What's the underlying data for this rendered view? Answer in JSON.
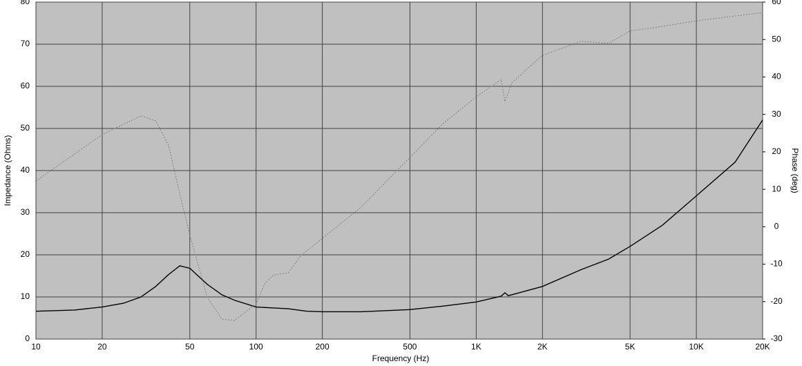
{
  "chart_data": {
    "type": "line",
    "xlabel": "Frequency (Hz)",
    "ylabel": "Impedance (Ohms)",
    "y2label": "Phase (deg)",
    "xscale": "log",
    "grid": true,
    "xlim": [
      10,
      20000
    ],
    "xticks": [
      10,
      20,
      50,
      100,
      200,
      500,
      {
        "value": 1000,
        "label": "1K"
      },
      {
        "value": 2000,
        "label": "2K"
      },
      {
        "value": 5000,
        "label": "5K"
      },
      {
        "value": 10000,
        "label": "10K"
      },
      {
        "value": 20000,
        "label": "20K"
      }
    ],
    "ylim": [
      0,
      80
    ],
    "yticks": [
      0,
      10,
      20,
      30,
      40,
      50,
      60,
      70,
      80
    ],
    "y2lim": [
      -30,
      60
    ],
    "y2ticks": [
      -30,
      -20,
      -10,
      0,
      10,
      20,
      30,
      40,
      50,
      60
    ],
    "series": [
      {
        "name": "Impedance",
        "color": "#000000",
        "x": [
          10,
          15,
          20,
          25,
          30,
          35,
          40,
          45,
          50,
          60,
          70,
          80,
          100,
          120,
          140,
          170,
          200,
          300,
          500,
          700,
          1000,
          1300,
          1350,
          1400,
          2000,
          3000,
          4000,
          5000,
          7000,
          10000,
          15000,
          20000
        ],
        "values": [
          6.6,
          6.9,
          7.6,
          8.5,
          10,
          12.5,
          15.3,
          17.4,
          16.8,
          13,
          10.5,
          9.2,
          7.6,
          7.4,
          7.2,
          6.6,
          6.5,
          6.5,
          7,
          7.8,
          8.8,
          10.2,
          11,
          10.3,
          12.5,
          16.5,
          19,
          22,
          27,
          34,
          42,
          52
        ]
      },
      {
        "name": "Phase",
        "color": "#808080",
        "axis": "y2",
        "x": [
          10,
          20,
          30,
          35,
          40,
          45,
          50,
          60,
          70,
          80,
          100,
          110,
          120,
          140,
          160,
          200,
          300,
          500,
          700,
          1000,
          1300,
          1350,
          1450,
          2000,
          3000,
          4000,
          5000,
          7000,
          10000,
          20000
        ],
        "values": [
          12.2,
          24.6,
          29.6,
          28.3,
          21.8,
          8.9,
          -2.2,
          -18.8,
          -24.7,
          -25,
          -20.6,
          -15,
          -12.9,
          -12.3,
          -7.7,
          -3.1,
          5.2,
          18.5,
          27.3,
          34.7,
          39.3,
          33.4,
          38.4,
          45.8,
          49.5,
          49,
          52.3,
          53.5,
          55,
          57.2
        ]
      }
    ]
  }
}
